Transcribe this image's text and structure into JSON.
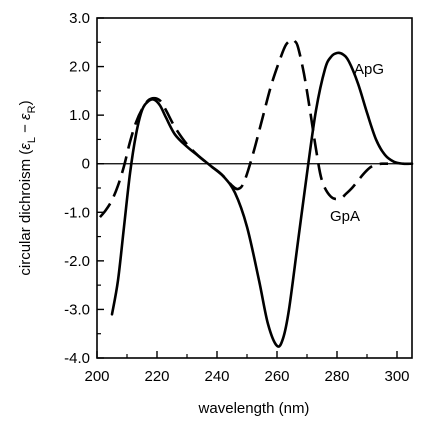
{
  "chart_data": {
    "type": "line",
    "title": "",
    "xlabel": "wavelength (nm)",
    "ylabel": "circular dichroism (εL − εR)",
    "ylabel_parts": {
      "prefix": "circular dichroism (",
      "eps1": "ε",
      "sub1": "L",
      "minus": " − ",
      "eps2": "ε",
      "sub2": "R",
      "suffix": ")"
    },
    "xlim": [
      200,
      305
    ],
    "ylim": [
      -4.0,
      3.0
    ],
    "x_ticks": [
      200,
      220,
      240,
      260,
      280,
      300
    ],
    "x_tick_labels": [
      "200",
      "220",
      "240",
      "260",
      "280",
      "300"
    ],
    "y_ticks": [
      3.0,
      2.0,
      1.0,
      0,
      -1.0,
      -2.0,
      -3.0,
      -4.0
    ],
    "y_tick_labels": [
      "3.0",
      "2.0",
      "1.0",
      "0",
      "-1.0",
      "-2.0",
      "-3.0",
      "-4.0"
    ],
    "grid": false,
    "zero_line": true,
    "series": [
      {
        "name": "ApG",
        "style": "solid",
        "x": [
          205,
          207,
          209,
          211,
          213,
          215,
          217,
          219,
          221,
          223,
          226,
          230,
          234,
          238,
          242,
          246,
          250,
          254,
          257,
          260,
          262,
          264,
          267,
          270,
          273,
          276,
          278,
          280,
          282,
          284,
          287,
          290,
          293,
          296,
          299,
          302,
          305
        ],
        "values": [
          -3.1,
          -2.4,
          -1.3,
          -0.2,
          0.6,
          1.1,
          1.28,
          1.32,
          1.2,
          0.95,
          0.6,
          0.35,
          0.15,
          -0.05,
          -0.25,
          -0.6,
          -1.3,
          -2.4,
          -3.3,
          -3.75,
          -3.6,
          -3.0,
          -1.6,
          -0.2,
          1.1,
          1.95,
          2.2,
          2.28,
          2.25,
          2.1,
          1.65,
          1.05,
          0.5,
          0.18,
          0.04,
          0.0,
          0.0
        ]
      },
      {
        "name": "GpA",
        "style": "dashed",
        "x": [
          201,
          203,
          205,
          207,
          209,
          211,
          213,
          215,
          217,
          219,
          221,
          223,
          226,
          230,
          234,
          238,
          242,
          245,
          247,
          249,
          252,
          255,
          258,
          261,
          263,
          265,
          266,
          267,
          269,
          271,
          273,
          275,
          278,
          281,
          283,
          285,
          287,
          289,
          291,
          293,
          295,
          297
        ],
        "values": [
          -1.1,
          -0.95,
          -0.75,
          -0.45,
          -0.05,
          0.45,
          0.85,
          1.12,
          1.3,
          1.35,
          1.3,
          1.1,
          0.75,
          0.4,
          0.15,
          -0.05,
          -0.25,
          -0.45,
          -0.52,
          -0.38,
          0.2,
          0.9,
          1.6,
          2.15,
          2.45,
          2.55,
          2.52,
          2.4,
          1.85,
          1.1,
          0.3,
          -0.35,
          -0.68,
          -0.72,
          -0.62,
          -0.5,
          -0.35,
          -0.2,
          -0.08,
          -0.02,
          0.0,
          0.0
        ]
      }
    ],
    "annotations": [
      {
        "text": "ApG",
        "series": "ApG"
      },
      {
        "text": "GpA",
        "series": "GpA"
      }
    ]
  }
}
